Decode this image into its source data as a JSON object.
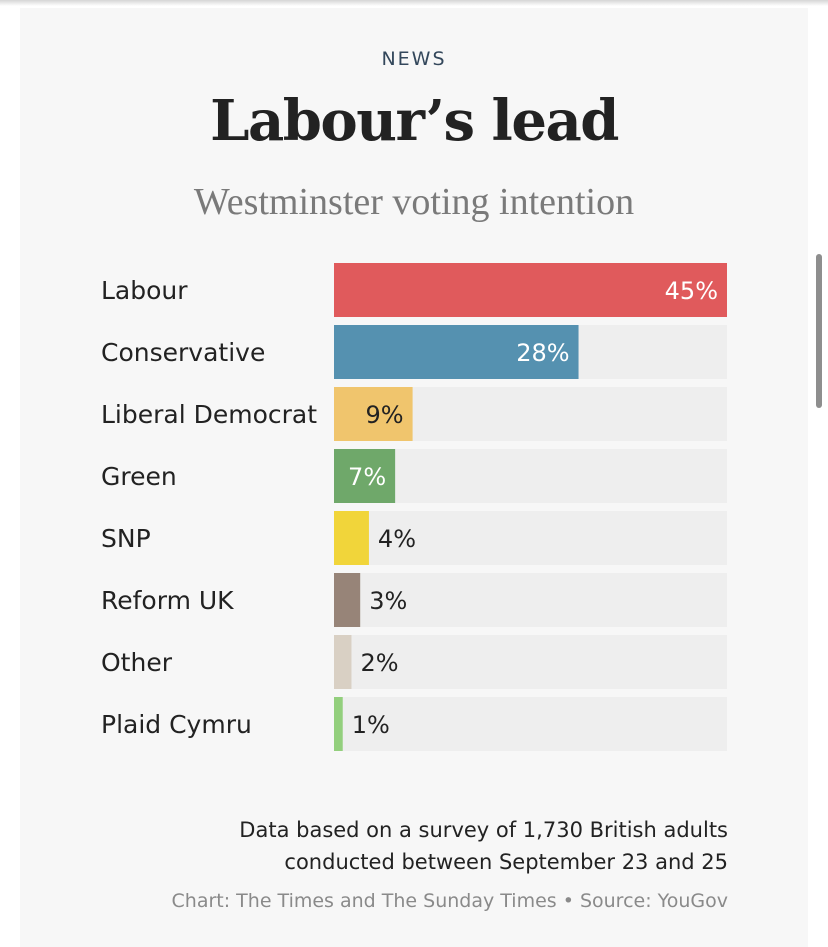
{
  "header": {
    "kicker": "NEWS",
    "title": "Labour’s lead",
    "subtitle": "Westminster voting intention"
  },
  "chart_data": {
    "type": "bar",
    "orientation": "horizontal",
    "title": "Labour’s lead",
    "subtitle": "Westminster voting intention",
    "xlim": [
      0,
      45
    ],
    "categories": [
      "Labour",
      "Conservative",
      "Liberal Democrat",
      "Green",
      "SNP",
      "Reform UK",
      "Other",
      "Plaid Cymru"
    ],
    "values": [
      45,
      28,
      9,
      7,
      4,
      3,
      2,
      1
    ],
    "labels": [
      "45%",
      "28%",
      "9%",
      "7%",
      "4%",
      "3%",
      "2%",
      "1%"
    ],
    "colors": [
      "#e05a5c",
      "#5591b0",
      "#f0c56d",
      "#6fa86a",
      "#f1d53a",
      "#978478",
      "#d9d0c4",
      "#93cf7d"
    ],
    "track_color": "#eeeeee"
  },
  "footer": {
    "note_line1": "Data based on a survey of 1,730 British adults",
    "note_line2": "conducted between September 23 and 25",
    "credit": "Chart: The Times and The Sunday Times • Source: YouGov"
  }
}
